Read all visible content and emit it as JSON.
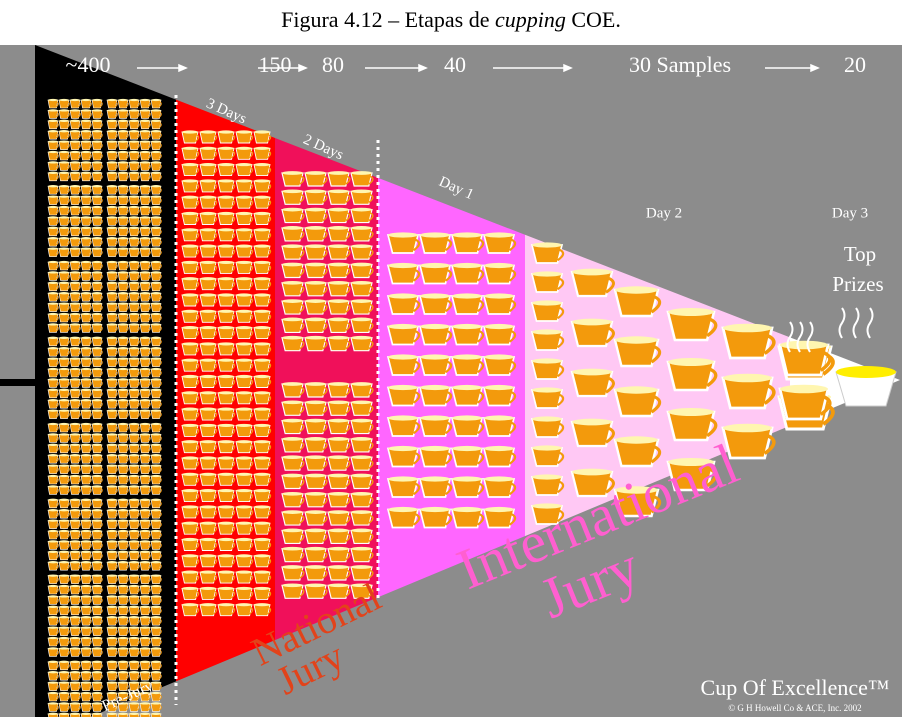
{
  "title": {
    "prefix": "Figura 4.12 – Etapas de",
    "italic": "cupping",
    "suffix": "COE."
  },
  "counts": [
    "~400",
    "150",
    "80",
    "40",
    "30 Samples",
    "20"
  ],
  "stages": [
    "3 Days",
    "2 Days",
    "Day 1",
    "Day 2",
    "Day 3"
  ],
  "top_prizes": [
    "Top",
    "Prizes"
  ],
  "juries": {
    "pre": "Pre-Jury",
    "national": [
      "National",
      "Jury"
    ],
    "international": [
      "International",
      "Jury"
    ]
  },
  "brand": "Cup Of Excellence™",
  "copyright": "© G H Howell Co & ACE, Inc. 2002"
}
